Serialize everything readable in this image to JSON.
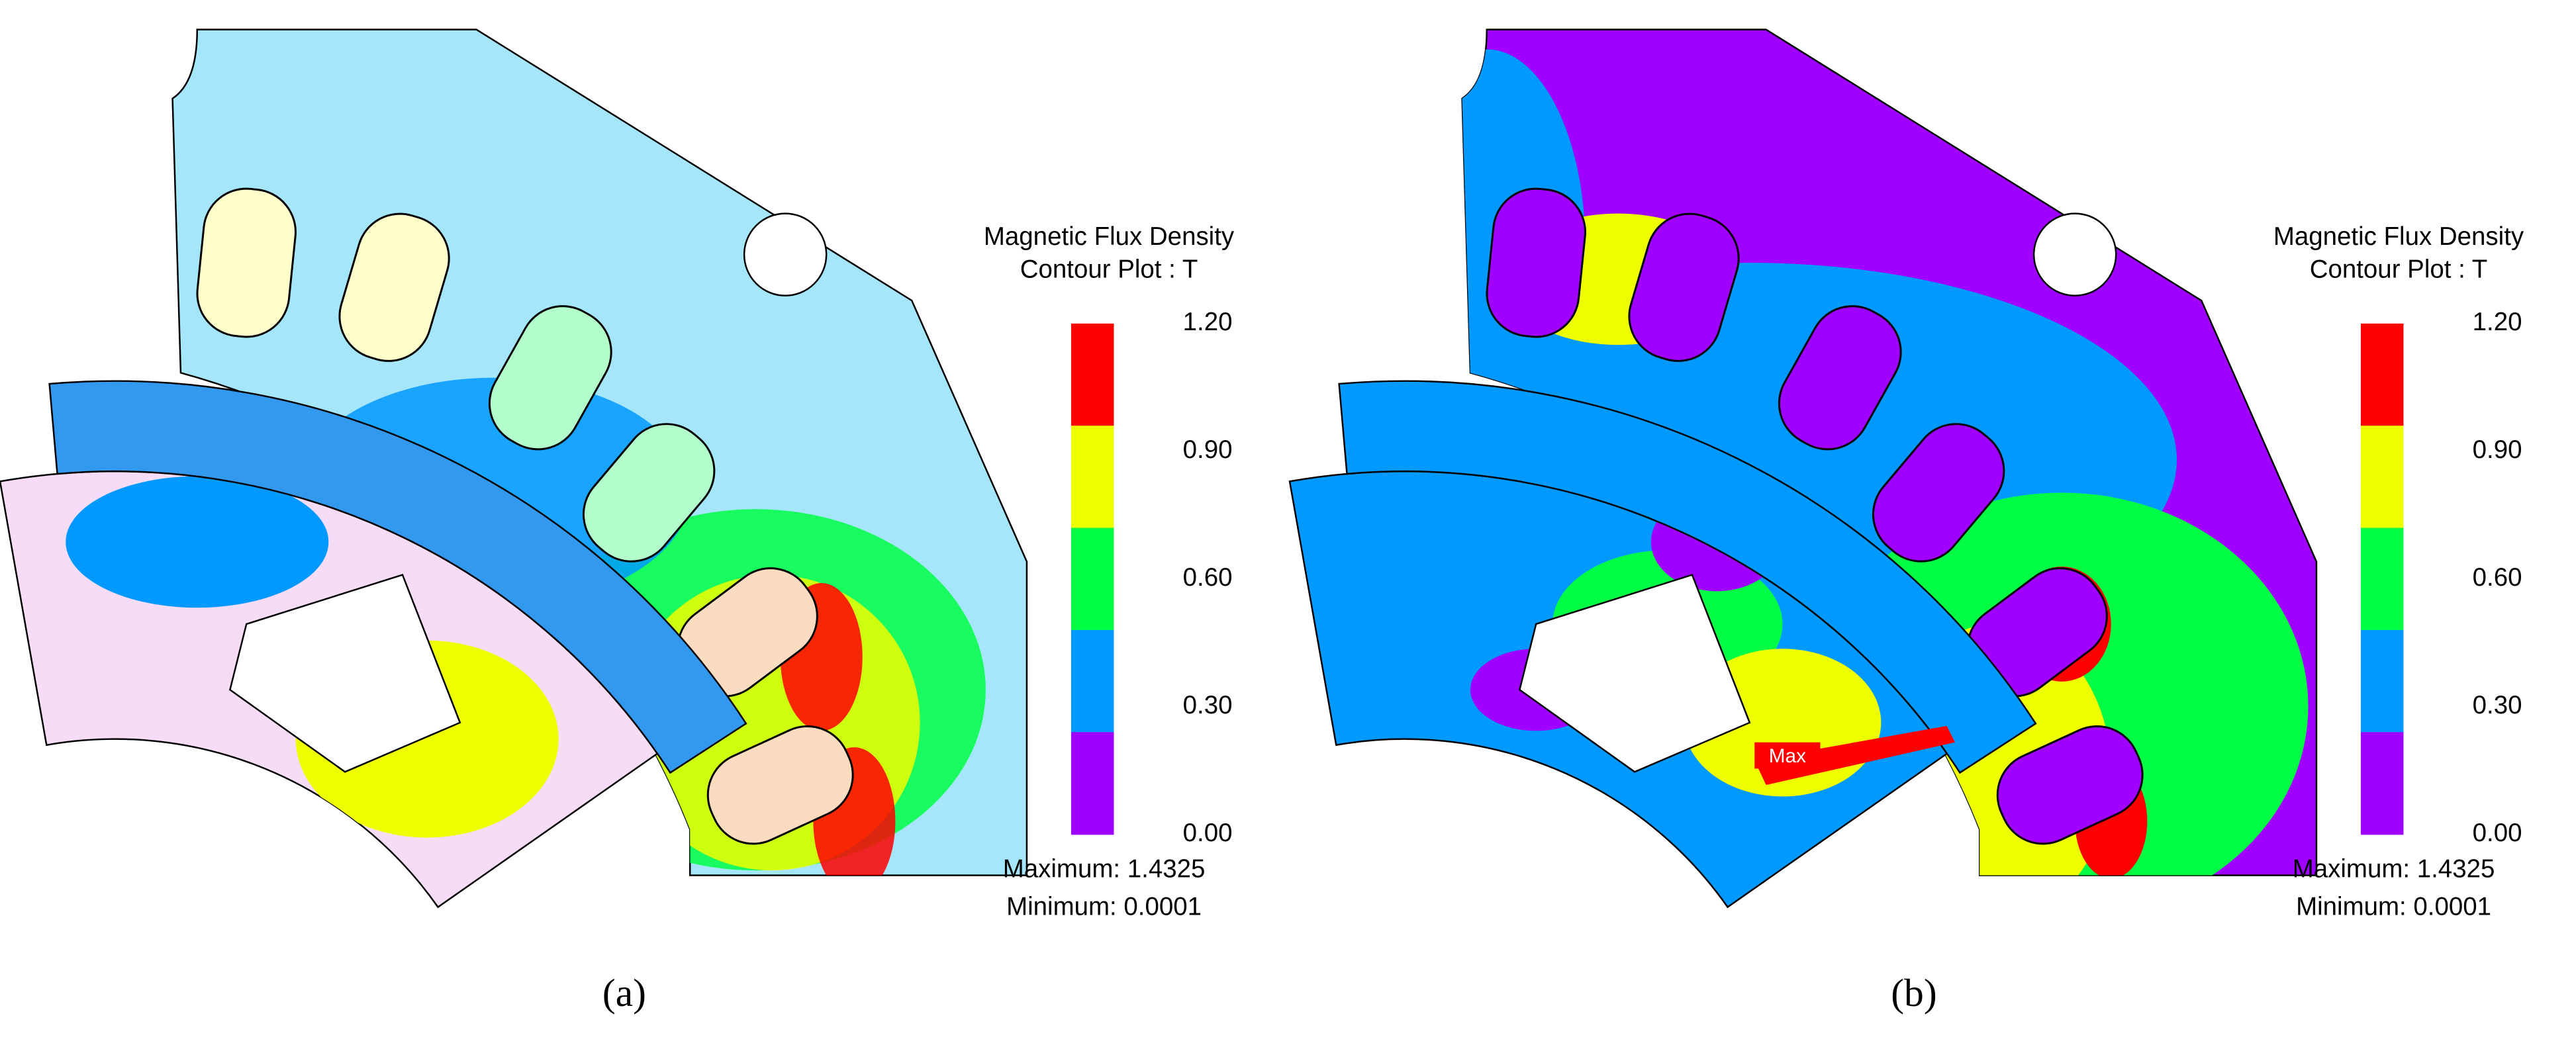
{
  "panels": [
    {
      "label": "(a)",
      "legend": {
        "title": [
          "Magnetic Flux Density",
          "Contour Plot : T"
        ],
        "ticks": [
          {
            "value": 1.2,
            "label": "1.20"
          },
          {
            "value": 0.9,
            "label": "0.90"
          },
          {
            "value": 0.6,
            "label": "0.60"
          },
          {
            "value": 0.3,
            "label": "0.30"
          },
          {
            "value": 0.0,
            "label": "0.00"
          }
        ],
        "colors": [
          "#ff0000",
          "#eeff00",
          "#00ff44",
          "#0099ff",
          "#a000ff"
        ],
        "maximum": "Maximum: 1.4325",
        "minimum": "Minimum: 0.0001"
      }
    },
    {
      "label": "(b)",
      "annotation": "Max",
      "legend": {
        "title": [
          "Magnetic Flux Density",
          "Contour Plot : T"
        ],
        "ticks": [
          {
            "value": 1.2,
            "label": "1.20"
          },
          {
            "value": 0.9,
            "label": "0.90"
          },
          {
            "value": 0.6,
            "label": "0.60"
          },
          {
            "value": 0.3,
            "label": "0.30"
          },
          {
            "value": 0.0,
            "label": "0.00"
          }
        ],
        "colors": [
          "#ff0000",
          "#eeff00",
          "#00ff44",
          "#0099ff",
          "#a000ff"
        ],
        "maximum": "Maximum: 1.4325",
        "minimum": "Minimum: 0.0001"
      }
    }
  ]
}
